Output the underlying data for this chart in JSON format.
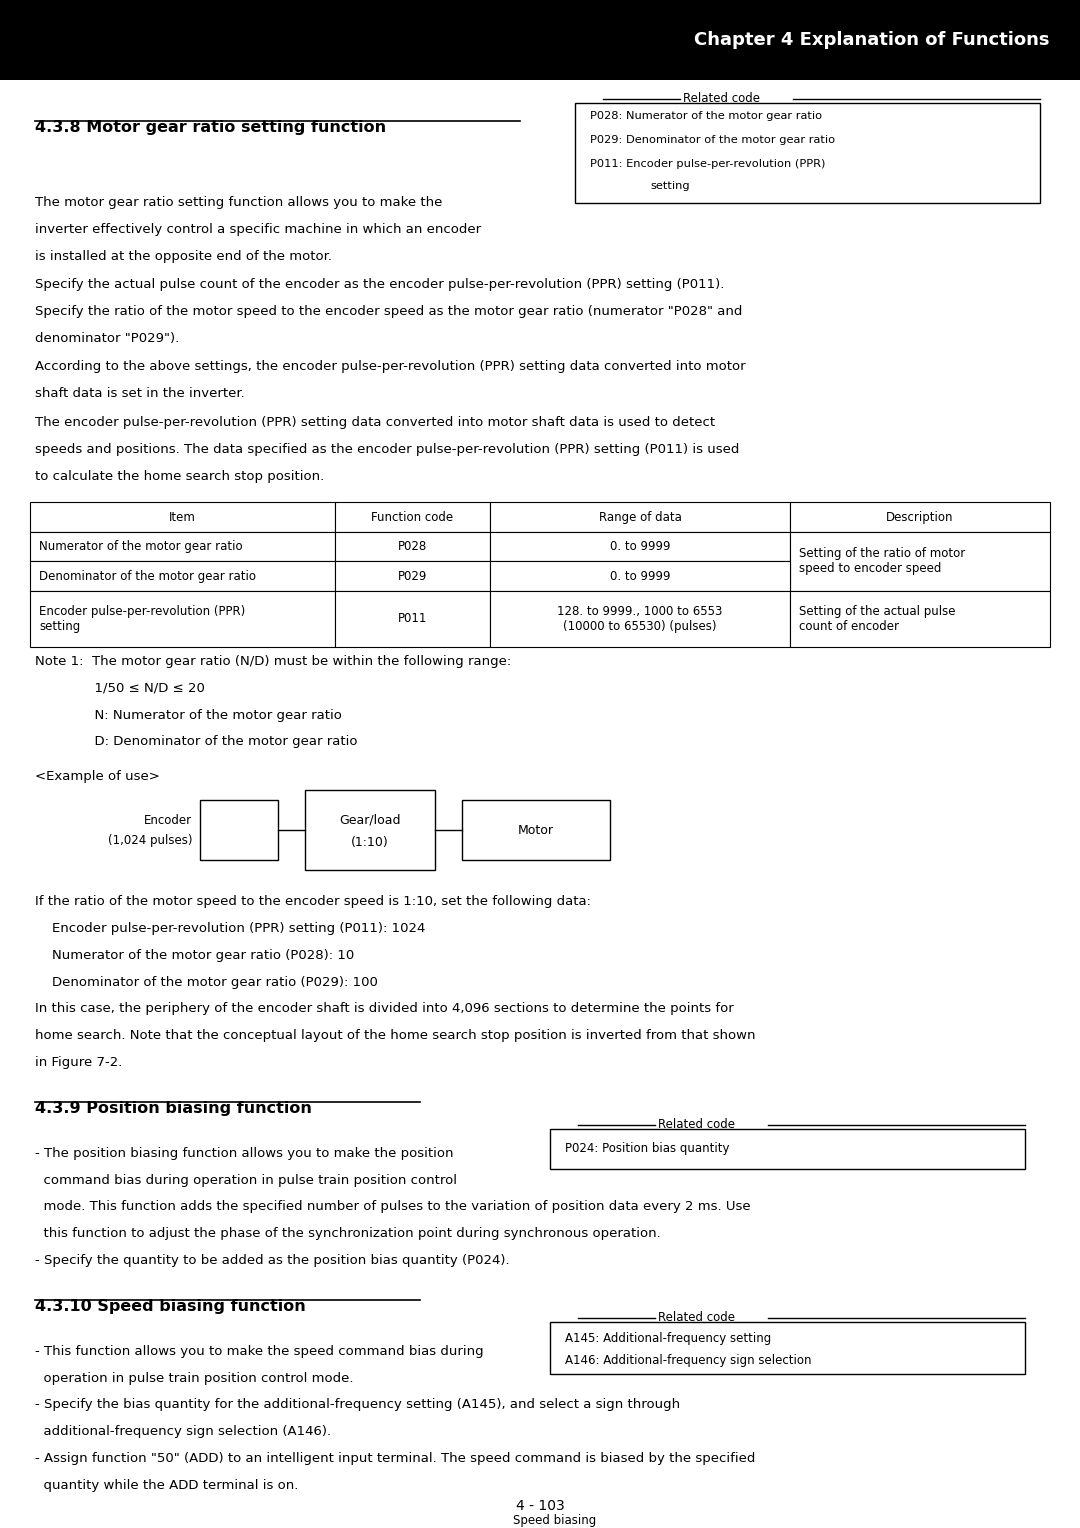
{
  "chapter_title": "Chapter 4 Explanation of Functions",
  "section_438_title": "4.3.8 Motor gear ratio setting function",
  "section_439_title": "4.3.9 Position biasing function",
  "section_4310_title": "4.3.10 Speed biasing function",
  "table_headers": [
    "Item",
    "Function code",
    "Range of data",
    "Description"
  ],
  "table_rows": [
    [
      "Numerator of the motor gear ratio",
      "P028",
      "0. to 9999",
      "Setting of the ratio of motor\nspeed to encoder speed"
    ],
    [
      "Denominator of the motor gear ratio",
      "P029",
      "0. to 9999",
      ""
    ],
    [
      "Encoder pulse-per-revolution (PPR)\nsetting",
      "P011",
      "128. to 9999., 1000 to 6553\n(10000 to 65530) (pulses)",
      "Setting of the actual pulse\ncount of encoder"
    ]
  ],
  "page_number": "4 - 103",
  "bg_color": "#ffffff",
  "header_bg": "#000000",
  "header_fg": "#ffffff"
}
